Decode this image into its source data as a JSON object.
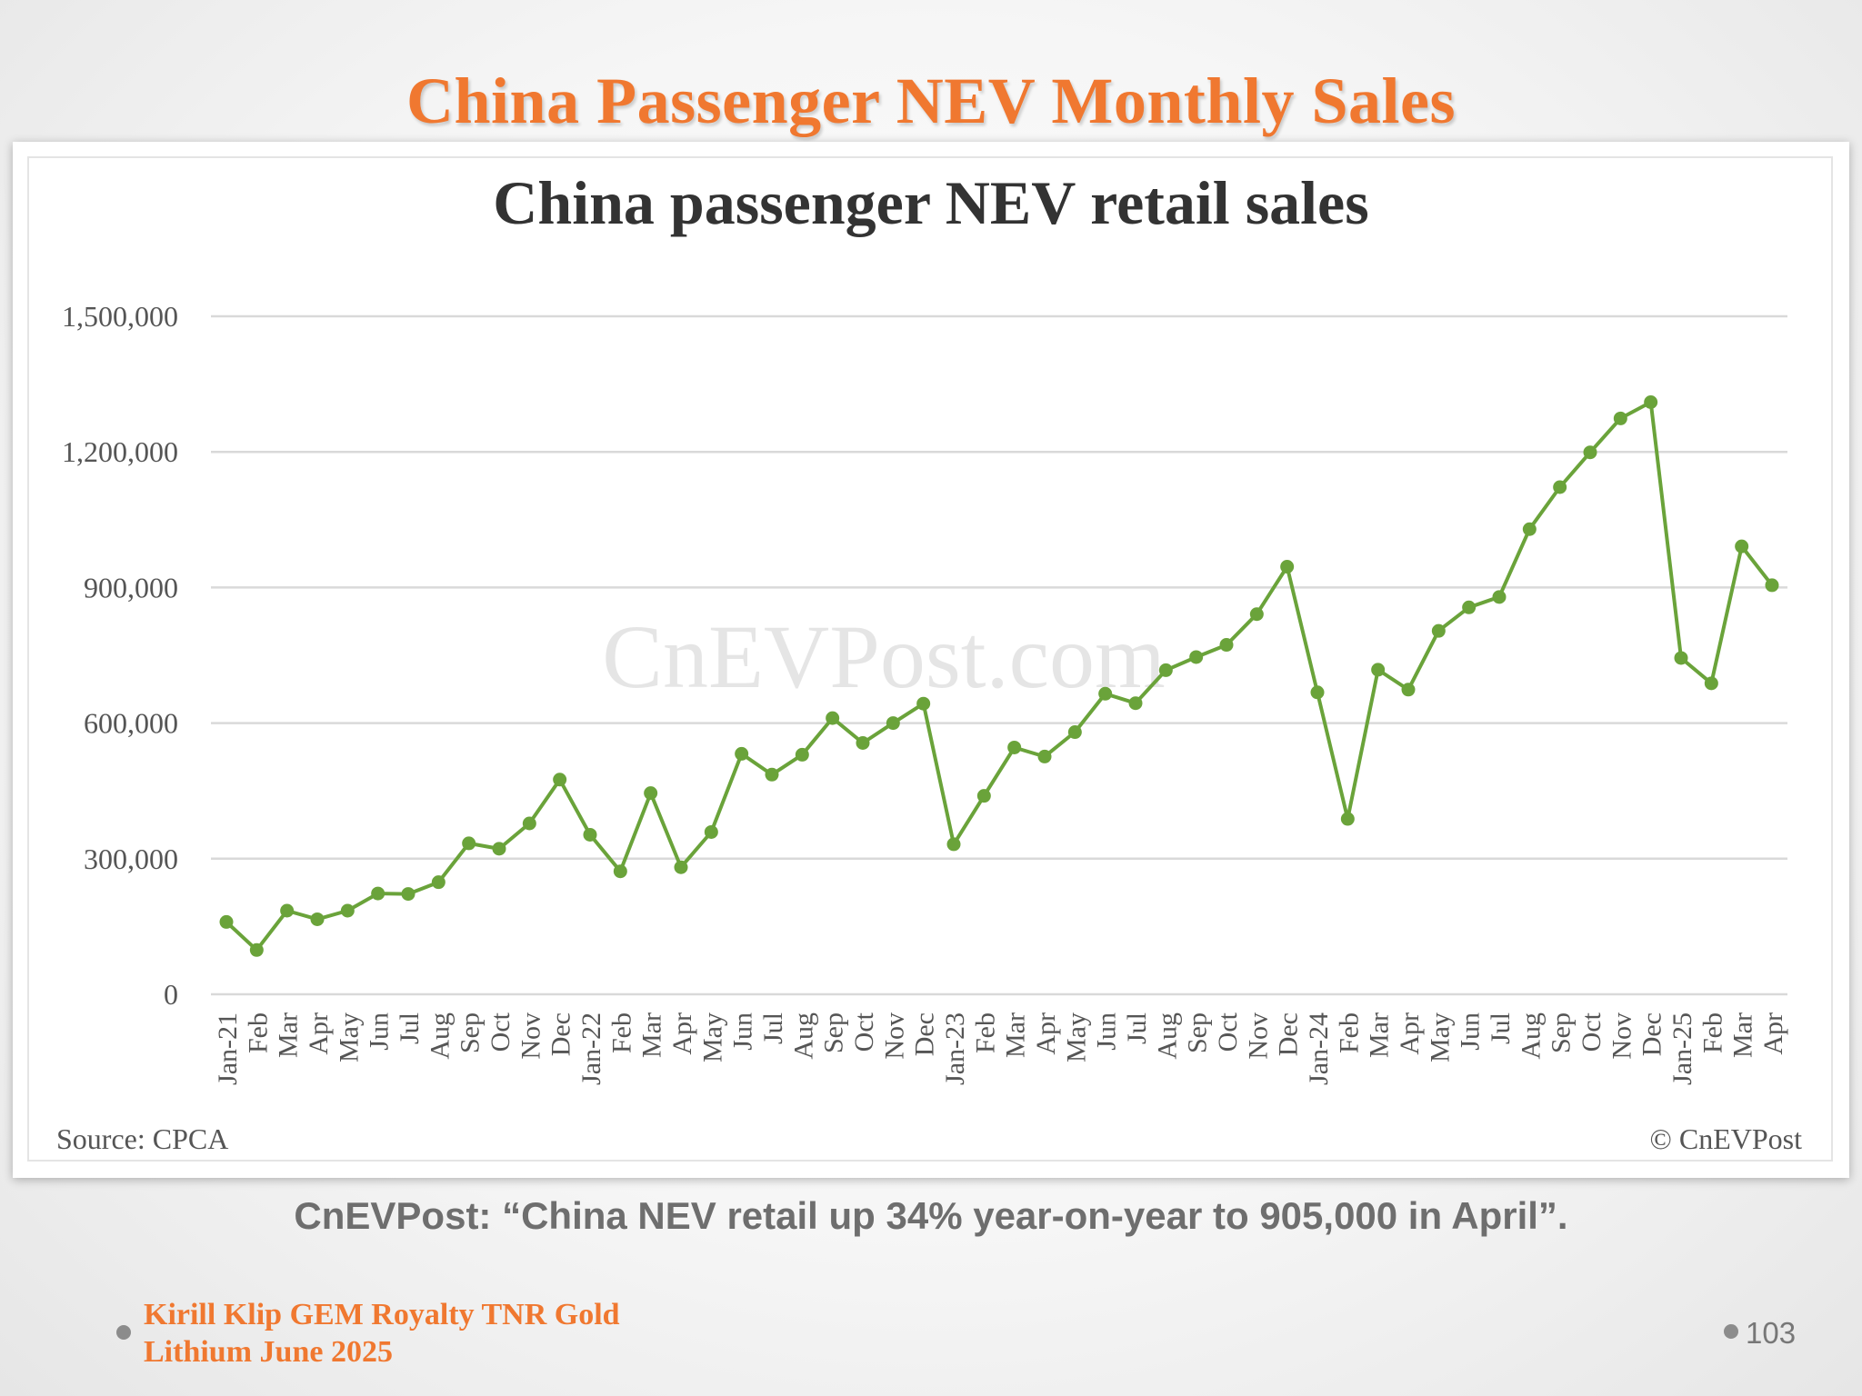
{
  "slide": {
    "title": "China Passenger NEV Monthly Sales",
    "caption": "CnEVPost: “China NEV retail up 34% year-on-year to 905,000 in April”.",
    "author_line1": "Kirill Klip GEM Royalty TNR Gold",
    "author_line2": "Lithium June 2025",
    "page_number": "103"
  },
  "chart_data": {
    "type": "line",
    "title": "China passenger NEV retail sales",
    "source": "Source: CPCA",
    "copyright": "© CnEVPost",
    "watermark": "CnEVPost.com",
    "categories": [
      "Jan-21",
      "Feb",
      "Mar",
      "Apr",
      "May",
      "Jun",
      "Jul",
      "Aug",
      "Sep",
      "Oct",
      "Nov",
      "Dec",
      "Jan-22",
      "Feb",
      "Mar",
      "Apr",
      "May",
      "Jun",
      "Jul",
      "Aug",
      "Sep",
      "Oct",
      "Nov",
      "Dec",
      "Jan-23",
      "Feb",
      "Mar",
      "Apr",
      "May",
      "Jun",
      "Jul",
      "Aug",
      "Sep",
      "Oct",
      "Nov",
      "Dec",
      "Jan-24",
      "Feb",
      "Mar",
      "Apr",
      "May",
      "Jun",
      "Jul",
      "Aug",
      "Sep",
      "Oct",
      "Nov",
      "Dec",
      "Jan-25",
      "Feb",
      "Mar",
      "Apr"
    ],
    "series": [
      {
        "values": [
          160000,
          98000,
          185000,
          166000,
          185000,
          223000,
          222000,
          248000,
          334000,
          322000,
          378000,
          475000,
          353000,
          272000,
          445000,
          281000,
          359000,
          532000,
          486000,
          530000,
          611000,
          556000,
          600000,
          643000,
          332000,
          439000,
          546000,
          526000,
          580000,
          665000,
          644000,
          717000,
          746000,
          773000,
          841000,
          946000,
          668000,
          388000,
          718000,
          674000,
          804000,
          856000,
          879000,
          1029000,
          1122000,
          1199000,
          1274000,
          1310000,
          744000,
          688000,
          991000,
          905000
        ],
        "color": "#6aa33a"
      }
    ],
    "y_ticks": [
      "0",
      "300,000",
      "600,000",
      "900,000",
      "1,200,000",
      "1,500,000"
    ],
    "ylim": [
      0,
      1500000
    ],
    "grid": true,
    "legend": "none"
  },
  "colors": {
    "title_orange": "#f07830",
    "line_green": "#6aa33a",
    "gridline": "#d9d9d9",
    "axis_text": "#555555"
  }
}
